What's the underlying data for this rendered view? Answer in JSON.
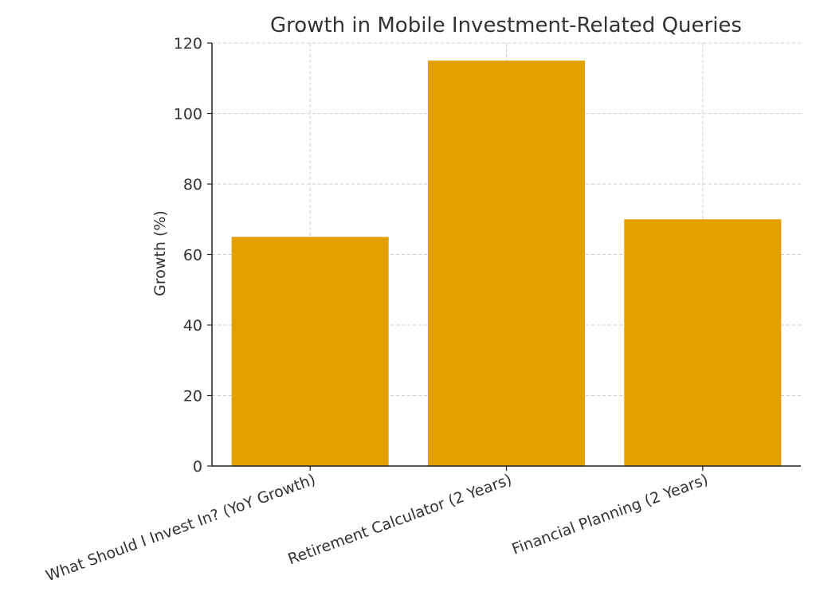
{
  "chart_data": {
    "type": "bar",
    "title": "Growth in Mobile Investment-Related Queries",
    "xlabel": "",
    "ylabel": "Growth (%)",
    "categories": [
      "What Should I Invest In? (YoY Growth)",
      "Retirement Calculator (2 Years)",
      "Financial Planning (2 Years)"
    ],
    "values": [
      65,
      115,
      70
    ],
    "ylim": [
      0,
      120
    ],
    "yticks": [
      0,
      20,
      40,
      60,
      80,
      100,
      120
    ],
    "bar_color": "#e3a000",
    "grid": true,
    "x_tick_rotation": 20
  }
}
